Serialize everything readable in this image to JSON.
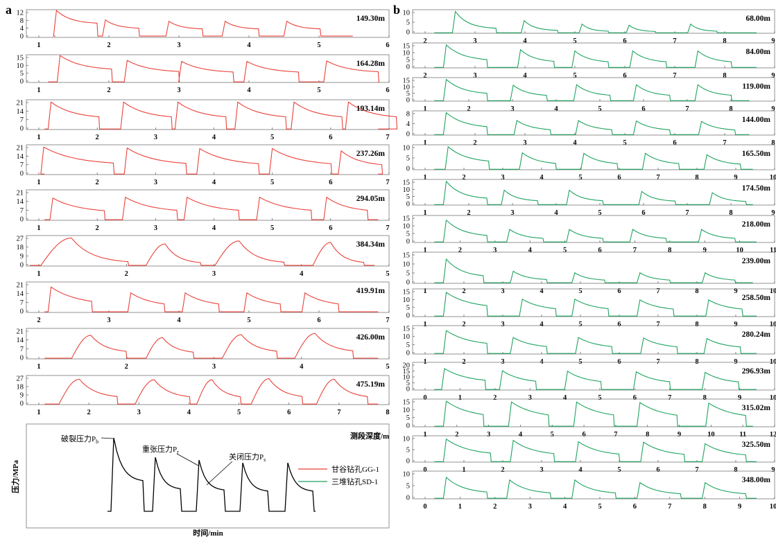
{
  "panels": [
    {
      "letter": "a",
      "color": "#e8423a",
      "charts": [
        {
          "depth": "149.30m",
          "yticks": [
            "0",
            "4",
            "8",
            "12"
          ],
          "xticks": [
            "1",
            "2",
            "3",
            "4",
            "5",
            "6"
          ],
          "pattern": "a1"
        },
        {
          "depth": "164.28m",
          "yticks": [
            "0",
            "5",
            "10",
            "15"
          ],
          "xticks": [
            "1",
            "2",
            "3",
            "4",
            "5",
            "6"
          ],
          "pattern": "a2"
        },
        {
          "depth": "193.14m",
          "yticks": [
            "0",
            "7",
            "14",
            "21"
          ],
          "xticks": [
            "1",
            "2",
            "3",
            "4",
            "5",
            "6",
            "7"
          ],
          "pattern": "a3"
        },
        {
          "depth": "237.26m",
          "yticks": [
            "0",
            "7",
            "14",
            "21"
          ],
          "xticks": [
            "1",
            "2",
            "3",
            "4",
            "5",
            "6",
            "7"
          ],
          "pattern": "a4"
        },
        {
          "depth": "294.05m",
          "yticks": [
            "0",
            "7",
            "14",
            "21"
          ],
          "xticks": [
            "1",
            "2",
            "3",
            "4",
            "5",
            "6",
            "7"
          ],
          "pattern": "a5"
        },
        {
          "depth": "384.34m",
          "yticks": [
            "0",
            "9",
            "18",
            "27"
          ],
          "xticks": [
            "1",
            "2",
            "3",
            "4",
            "5"
          ],
          "pattern": "a6"
        },
        {
          "depth": "419.91m",
          "yticks": [
            "0",
            "7",
            "14",
            "21"
          ],
          "xticks": [
            "2",
            "3",
            "4",
            "5",
            "6",
            "7"
          ],
          "pattern": "a7"
        },
        {
          "depth": "426.00m",
          "yticks": [
            "0",
            "7",
            "14",
            "21"
          ],
          "xticks": [
            "1",
            "2",
            "3",
            "4",
            "5"
          ],
          "pattern": "a8"
        },
        {
          "depth": "475.19m",
          "yticks": [
            "0",
            "9",
            "18",
            "27"
          ],
          "xticks": [
            "1",
            "2",
            "3",
            "4",
            "5",
            "6",
            "7",
            "8"
          ],
          "pattern": "a9"
        }
      ]
    },
    {
      "letter": "b",
      "color": "#1fa35f",
      "charts": [
        {
          "depth": "68.00m",
          "yticks": [
            "0",
            "5",
            "10"
          ],
          "xticks": [
            "2",
            "3",
            "4",
            "5",
            "6",
            "7",
            "8",
            "9"
          ],
          "pattern": "b1"
        },
        {
          "depth": "84.00m",
          "yticks": [
            "0",
            "5",
            "10",
            "15"
          ],
          "xticks": [
            "2",
            "3",
            "4",
            "5",
            "6",
            "7",
            "8",
            "9"
          ],
          "pattern": "b2"
        },
        {
          "depth": "119.00m",
          "yticks": [
            "0",
            "5",
            "10",
            "15"
          ],
          "xticks": [
            "1",
            "2",
            "3",
            "4",
            "5",
            "6",
            "7",
            "8",
            "9"
          ],
          "pattern": "b3"
        },
        {
          "depth": "144.00m",
          "yticks": [
            "0",
            "4",
            "8"
          ],
          "xticks": [
            "1",
            "2",
            "3",
            "4",
            "5",
            "6",
            "7",
            "8"
          ],
          "pattern": "b4"
        },
        {
          "depth": "165.50m",
          "yticks": [
            "0",
            "5",
            "10"
          ],
          "xticks": [
            "1",
            "2",
            "3",
            "4",
            "5",
            "6",
            "7",
            "8",
            "9",
            "10"
          ],
          "pattern": "b5"
        },
        {
          "depth": "174.50m",
          "yticks": [
            "0",
            "5",
            "10",
            "15"
          ],
          "xticks": [
            "1",
            "2",
            "3",
            "4",
            "5",
            "6",
            "7",
            "8",
            "9"
          ],
          "pattern": "b6"
        },
        {
          "depth": "218.00m",
          "yticks": [
            "0",
            "5",
            "10",
            "15"
          ],
          "xticks": [
            "1",
            "2",
            "3",
            "4",
            "5",
            "6",
            "7",
            "8",
            "9",
            "10",
            "11"
          ],
          "pattern": "b7"
        },
        {
          "depth": "239.00m",
          "yticks": [
            "0",
            "5",
            "10",
            "15"
          ],
          "xticks": [
            "1",
            "2",
            "3",
            "4",
            "5",
            "6",
            "7",
            "8",
            "9",
            "10"
          ],
          "pattern": "b8"
        },
        {
          "depth": "258.50m",
          "yticks": [
            "0",
            "5",
            "10",
            "15"
          ],
          "xticks": [
            "1",
            "2",
            "3",
            "4",
            "5",
            "6",
            "7",
            "8",
            "9",
            "10"
          ],
          "pattern": "b9"
        },
        {
          "depth": "280.24m",
          "yticks": [
            "0",
            "5",
            "10",
            "15"
          ],
          "xticks": [
            "1",
            "2",
            "3",
            "4",
            "5",
            "6",
            "7",
            "8",
            "9",
            "10"
          ],
          "pattern": "b10"
        },
        {
          "depth": "296.93m",
          "yticks": [
            "0",
            "5",
            "10",
            "15",
            "20"
          ],
          "xticks": [
            "0",
            "1",
            "2",
            "3",
            "4",
            "5",
            "6",
            "7",
            "8",
            "9",
            "10"
          ],
          "pattern": "b11"
        },
        {
          "depth": "315.02m",
          "yticks": [
            "0",
            "5",
            "10",
            "15"
          ],
          "xticks": [
            "1",
            "2",
            "3",
            "4",
            "5",
            "6",
            "7",
            "8",
            "9",
            "10",
            "11",
            "12"
          ],
          "pattern": "b12"
        },
        {
          "depth": "325.50m",
          "yticks": [
            "0",
            "5",
            "10"
          ],
          "xticks": [
            "0",
            "1",
            "2",
            "3",
            "4",
            "5",
            "6",
            "7",
            "8",
            "9"
          ],
          "pattern": "b13"
        },
        {
          "depth": "348.00m",
          "yticks": [
            "0",
            "5",
            "10"
          ],
          "xticks": [
            "0",
            "1",
            "2",
            "3",
            "4",
            "5",
            "6",
            "7",
            "8",
            "9",
            "10"
          ],
          "pattern": "b14"
        }
      ]
    }
  ],
  "schematic": {
    "breakdown_label": "破裂压力P",
    "breakdown_sub": "b",
    "reopen_label": "重张压力P",
    "reopen_sub": "r",
    "shutin_label": "关闭压力P",
    "shutin_sub": "s",
    "y_label": "压力/MPa",
    "x_label": "时间/min",
    "depth_label": "测段深度/m",
    "legend": [
      {
        "name": "甘谷钻孔GG-1",
        "color": "#e8423a"
      },
      {
        "name": "三堆钻孔SD-1",
        "color": "#1fa35f"
      }
    ]
  }
}
